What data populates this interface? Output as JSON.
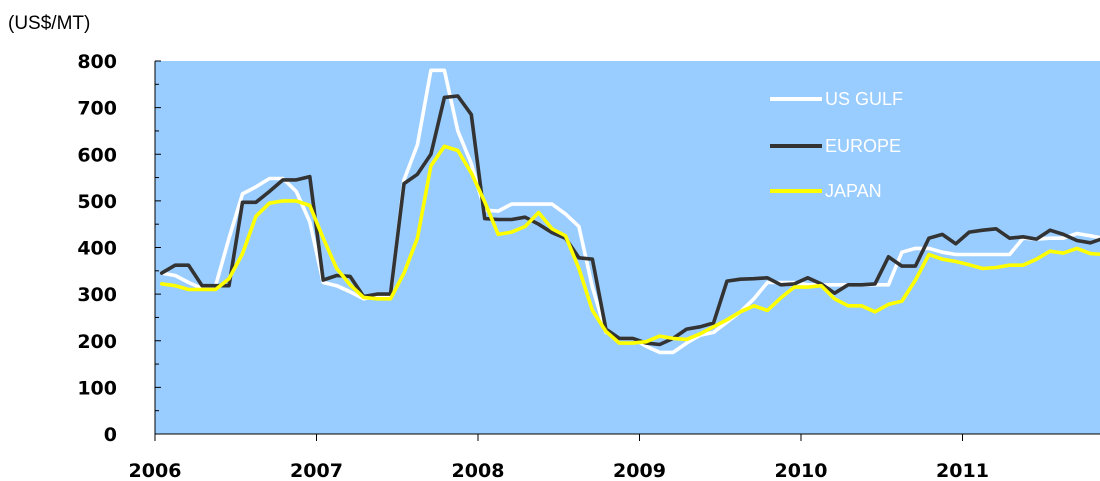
{
  "chart_data": {
    "type": "line",
    "unit_label": "(US$/MT)",
    "title": "",
    "ylim": [
      0,
      800
    ],
    "yticks": [
      "0",
      "100",
      "200",
      "300",
      "400",
      "500",
      "600",
      "700",
      "800"
    ],
    "year_labels": [
      "2006",
      "2007",
      "2008",
      "2009",
      "2010",
      "2011"
    ],
    "x_start": "2006-01",
    "x_end": "2011-12",
    "grid": false,
    "legend_position": "top-right",
    "plot_background": "#99CCFF",
    "series": [
      {
        "name": "US GULF",
        "color": "#FFFFFF",
        "values": [
          345,
          340,
          325,
          312,
          318,
          420,
          515,
          530,
          548,
          548,
          520,
          455,
          325,
          318,
          305,
          290,
          295,
          295,
          545,
          620,
          780,
          780,
          650,
          580,
          480,
          478,
          493,
          493,
          493,
          493,
          472,
          445,
          315,
          218,
          205,
          205,
          188,
          175,
          175,
          195,
          212,
          218,
          240,
          262,
          290,
          325,
          325,
          325,
          320,
          320,
          320,
          320,
          320,
          320,
          320,
          390,
          398,
          398,
          390,
          385,
          385,
          385,
          385,
          385,
          420,
          418,
          420,
          420,
          430,
          425,
          420,
          385
        ]
      },
      {
        "name": "EUROPE",
        "color": "#333333",
        "values": [
          345,
          362,
          362,
          318,
          318,
          318,
          497,
          497,
          520,
          545,
          545,
          552,
          330,
          340,
          338,
          295,
          300,
          300,
          537,
          557,
          600,
          722,
          725,
          685,
          462,
          460,
          460,
          465,
          450,
          432,
          420,
          378,
          375,
          225,
          205,
          205,
          195,
          192,
          205,
          225,
          230,
          238,
          328,
          332,
          333,
          335,
          320,
          322,
          335,
          322,
          302,
          320,
          320,
          322,
          380,
          360,
          360,
          420,
          428,
          408,
          433,
          437,
          440,
          420,
          423,
          418,
          437,
          428,
          415,
          410,
          420,
          425
        ]
      },
      {
        "name": "JAPAN",
        "color": "#FFFF00",
        "values": [
          322,
          318,
          310,
          310,
          310,
          333,
          387,
          467,
          495,
          500,
          500,
          490,
          420,
          355,
          320,
          293,
          290,
          290,
          345,
          420,
          575,
          617,
          608,
          560,
          498,
          428,
          433,
          445,
          475,
          440,
          425,
          355,
          265,
          220,
          195,
          195,
          198,
          210,
          205,
          203,
          215,
          230,
          245,
          262,
          275,
          265,
          292,
          315,
          315,
          318,
          290,
          275,
          275,
          262,
          278,
          285,
          330,
          385,
          375,
          370,
          363,
          355,
          357,
          362,
          362,
          375,
          392,
          388,
          398,
          387,
          385,
          405
        ]
      }
    ]
  }
}
